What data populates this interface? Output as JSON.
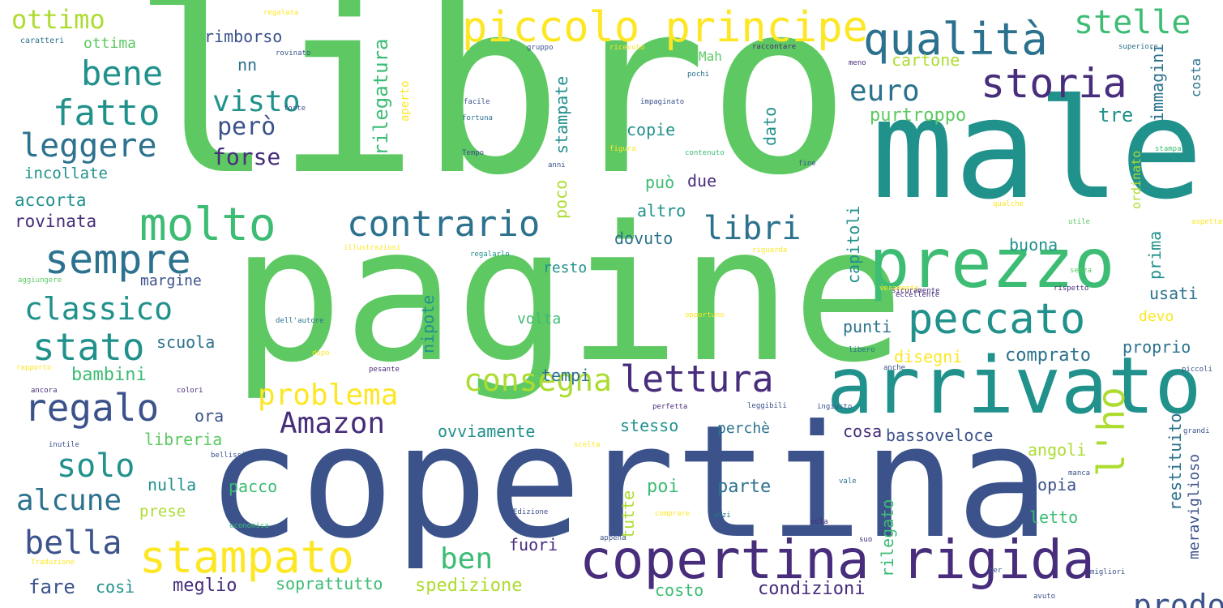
{
  "palette": {
    "light_green": "#5ec962",
    "teal": "#21918c",
    "green": "#3dbc74",
    "navy": "#3b528b",
    "purple": "#472d7b",
    "yellow": "#fde725",
    "lime": "#addc30",
    "cyan": "#2c728e"
  },
  "words": [
    "libro",
    "pagine",
    "copertina",
    "male",
    "arrivato",
    "prezzo",
    "copertina rigida",
    "piccolo principe",
    "qualità",
    "storia",
    "stampato",
    "molto",
    "contrario",
    "sempre",
    "lettura",
    "peccato",
    "stelle",
    "bene",
    "fatto",
    "leggere",
    "visto",
    "però",
    "forse",
    "euro",
    "libri",
    "classico",
    "stato",
    "regalo",
    "problema",
    "consegna",
    "Amazon",
    "solo",
    "alcune",
    "bella",
    "ben",
    "prodotto",
    "l'ho",
    "ottimo",
    "ottima",
    "rimborso",
    "nn",
    "rilegatura",
    "cartone",
    "purtroppo",
    "tre",
    "immagini",
    "costa",
    "incollate",
    "accorta",
    "rovinata",
    "margine",
    "scuola",
    "bambini",
    "ora",
    "libreria",
    "nulla",
    "prese",
    "fare",
    "così",
    "meglio",
    "soprattutto",
    "spedizione",
    "costo",
    "condizioni",
    "rilegato",
    "fuori",
    "pacco",
    "poi",
    "parte",
    "tutte",
    "restituito",
    "copia",
    "letto",
    "angoli",
    "meraviglioso",
    "bassoveloce",
    "cosa",
    "perchè",
    "stesso",
    "ovviamente",
    "tempi",
    "nipote",
    "volta",
    "resto",
    "poco",
    "dovuto",
    "altro",
    "può",
    "due",
    "copie",
    "dato",
    "stampate",
    "capitoli",
    "prima",
    "usati",
    "devo",
    "punti",
    "disegni",
    "comprato",
    "proprio",
    "buona",
    "ordinato",
    "Mah",
    "aperto",
    "caratteri",
    "ricevuto",
    "facile",
    "fortuna",
    "bellissimo",
    "Tempo",
    "anni",
    "figura",
    "piccoli",
    "superiore",
    "rispetto",
    "libero",
    "raccontare",
    "impaginato",
    "comprare",
    "Traduzione",
    "Edizione",
    "regalarlo",
    "illustrazioni",
    "qualche",
    "anche",
    "rovinato",
    "economica",
    "dopo",
    "rapporto",
    "ancora",
    "colori",
    "perfetta",
    "grandi",
    "pesante",
    "utile",
    "leggibili",
    "aspettavo",
    "inutile",
    "appena",
    "meno",
    "anzi",
    "veramente",
    "ingiusto",
    "riguarda",
    "migliori",
    "senza",
    "forte",
    "opportuno",
    "avuto",
    "suo",
    "sicuramente",
    "per",
    "vale",
    "scelta",
    "stampa",
    "gruppo",
    "fine",
    "dell'autore",
    "aggiungere",
    "eccellente",
    "pochi",
    "contenuto",
    "manca",
    "sola",
    "regalata"
  ]
}
